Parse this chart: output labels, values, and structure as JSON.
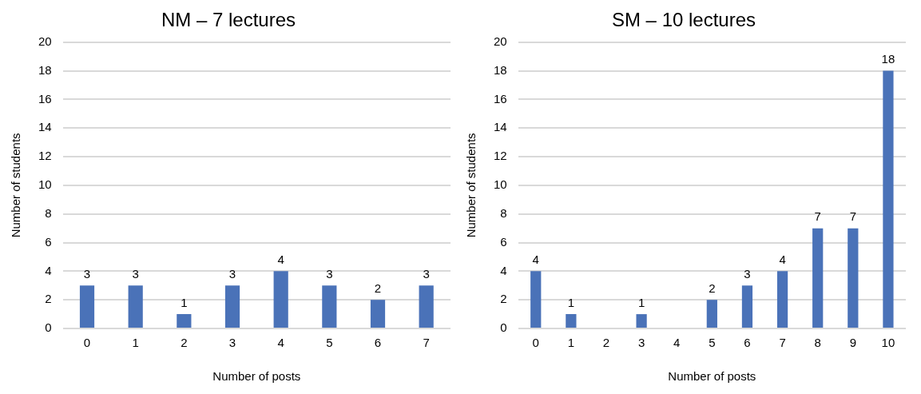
{
  "chart_data": [
    {
      "type": "bar",
      "title": "NM – 7 lectures",
      "xlabel": "Number of posts",
      "ylabel": "Number of students",
      "categories": [
        "0",
        "1",
        "2",
        "3",
        "4",
        "5",
        "6",
        "7"
      ],
      "values": [
        3,
        3,
        1,
        3,
        4,
        3,
        2,
        3
      ],
      "color": "#4a72b8",
      "ylim": [
        0,
        20
      ],
      "yticks": [
        0,
        2,
        4,
        6,
        8,
        10,
        12,
        14,
        16,
        18,
        20
      ],
      "grid": "y",
      "data_labels": true,
      "legend": false
    },
    {
      "type": "bar",
      "title": "SM – 10 lectures",
      "xlabel": "Number of posts",
      "ylabel": "Number of students",
      "categories": [
        "0",
        "1",
        "2",
        "3",
        "4",
        "5",
        "6",
        "7",
        "8",
        "9",
        "10"
      ],
      "values": [
        4,
        1,
        0,
        1,
        0,
        2,
        3,
        4,
        7,
        7,
        18
      ],
      "value_labels": [
        "4",
        "1",
        null,
        "1",
        null,
        "2",
        "3",
        "4",
        "7",
        "7",
        "18"
      ],
      "color": "#4a72b8",
      "ylim": [
        0,
        20
      ],
      "yticks": [
        0,
        2,
        4,
        6,
        8,
        10,
        12,
        14,
        16,
        18,
        20
      ],
      "grid": "y",
      "legend": false
    }
  ]
}
